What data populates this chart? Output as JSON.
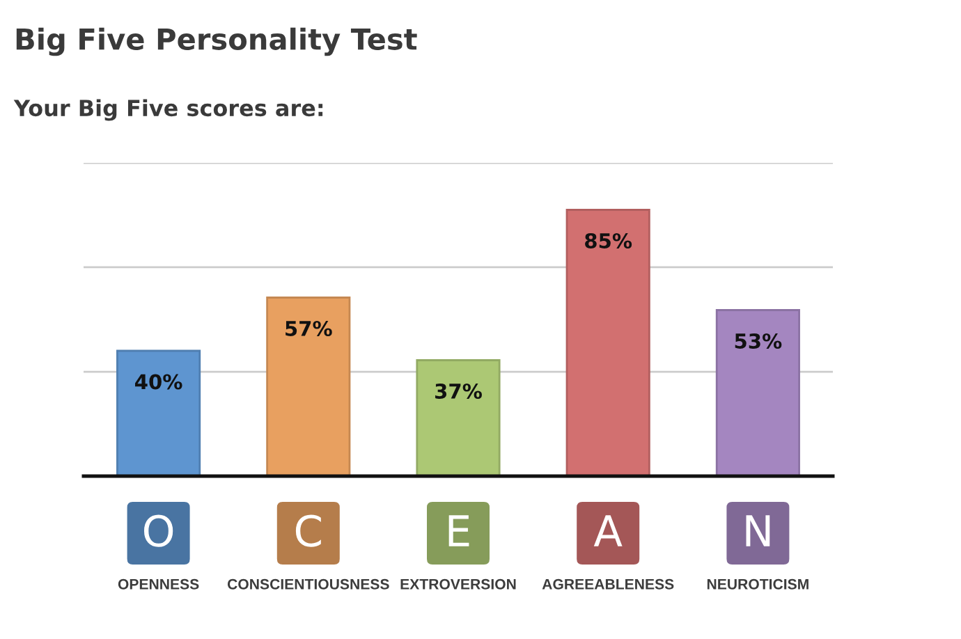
{
  "chart_data": {
    "type": "bar",
    "title": "Big Five Personality Test",
    "subtitle": "Your Big Five scores are:",
    "categories": [
      "OPENNESS",
      "CONSCIENTIOUSNESS",
      "EXTROVERSION",
      "AGREEABLENESS",
      "NEUROTICISM"
    ],
    "values": [
      40,
      57,
      37,
      85,
      53
    ],
    "value_labels": [
      "40%",
      "57%",
      "37%",
      "85%",
      "53%"
    ],
    "colors": [
      "#5e95d0",
      "#e8a060",
      "#acc874",
      "#d27070",
      "#a486c0"
    ],
    "annotations": [
      "O",
      "C",
      "E",
      "A",
      "N"
    ],
    "ylim": [
      0,
      100
    ],
    "yticks": [
      {
        "value": 33.3,
        "label": null
      },
      {
        "value": 66.7,
        "label": null
      },
      {
        "value": 100,
        "label": null
      }
    ],
    "grid": "y",
    "tick_labels": "x"
  }
}
